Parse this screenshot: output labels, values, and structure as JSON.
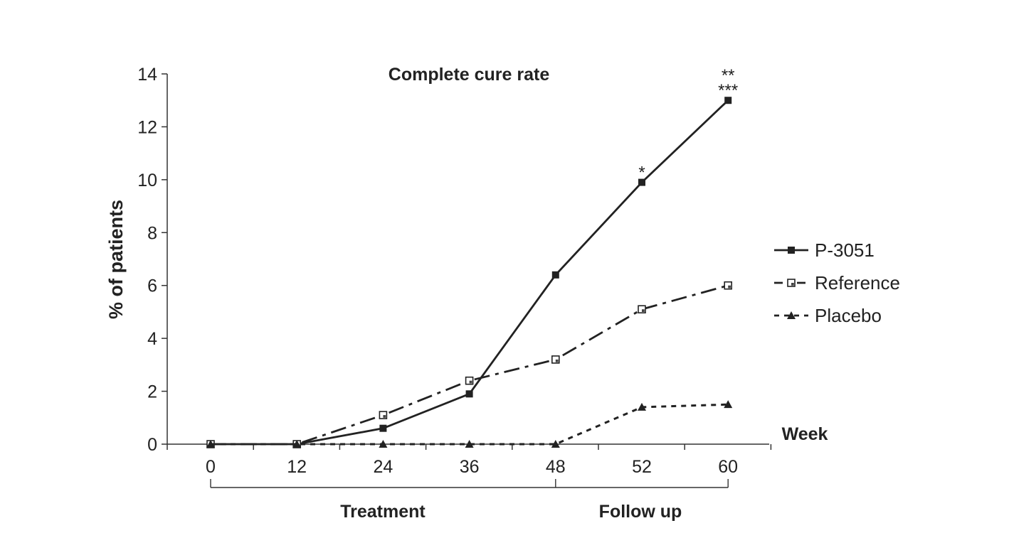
{
  "chart_data": {
    "type": "line",
    "title": "Complete cure rate",
    "xlabel": "Week",
    "ylabel": "% of patients",
    "x": [
      0,
      12,
      24,
      36,
      48,
      52,
      60
    ],
    "x_tick_labels": [
      "0",
      "12",
      "24",
      "36",
      "48",
      "52",
      "60"
    ],
    "ylim": [
      0,
      14
    ],
    "y_ticks": [
      0,
      2,
      4,
      6,
      8,
      10,
      12,
      14
    ],
    "grid": false,
    "legend_position": "right",
    "series": [
      {
        "name": "P-3051",
        "values": [
          0,
          0,
          0.6,
          1.9,
          6.4,
          9.9,
          13.0
        ],
        "line_style": "solid",
        "marker": "filled-square"
      },
      {
        "name": "Reference",
        "values": [
          0,
          0,
          1.1,
          2.4,
          3.2,
          5.1,
          6.0
        ],
        "line_style": "dash-dot",
        "marker": "open-square"
      },
      {
        "name": "Placebo",
        "values": [
          0,
          0,
          0,
          0,
          0,
          1.4,
          1.5
        ],
        "line_style": "dotted",
        "marker": "filled-triangle"
      }
    ],
    "annotations": [
      {
        "text": "*",
        "x": 52,
        "y": 9.9
      },
      {
        "text": "**",
        "x": 60,
        "y": 13.0
      },
      {
        "text": "***",
        "x": 60,
        "y": 13.0
      }
    ],
    "periods": [
      {
        "label": "Treatment",
        "from": 0,
        "to": 48
      },
      {
        "label": "Follow up",
        "from": 48,
        "to": 60
      }
    ]
  }
}
